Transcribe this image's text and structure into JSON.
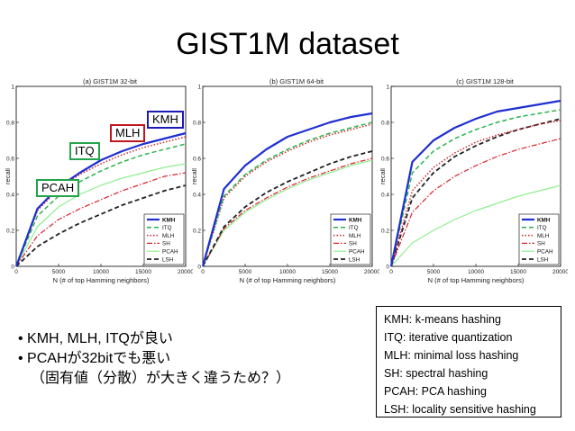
{
  "title": "GIST1M dataset",
  "callouts": {
    "kmh": "KMH",
    "mlh": "MLH",
    "itq": "ITQ",
    "pcah": "PCAH"
  },
  "callout_colors": {
    "kmh": "#1a1ab5",
    "mlh": "#c0171e",
    "itq": "#23a34a",
    "pcah": "#23a34a"
  },
  "bullets": [
    "• KMH, MLH, ITQが良い",
    "• PCAHが32bitでも悪い",
    "（固有値（分散）が大きく違うため？）"
  ],
  "legend_box": [
    "KMH: k-means hashing",
    "ITQ: iterative quantization",
    "MLH: minimal loss hashing",
    "SH: spectral hashing",
    "PCAH: PCA hashing",
    "LSH: locality sensitive hashing"
  ],
  "chart_data": [
    {
      "type": "line",
      "title": "(a) GIST1M 32-bit",
      "xlabel": "N (# of top Hamming neighbors)",
      "ylabel": "recall",
      "x": [
        0,
        2500,
        5000,
        7500,
        10000,
        12500,
        15000,
        17500,
        20000
      ],
      "xticks": [
        0,
        5000,
        10000,
        15000,
        20000
      ],
      "yticks": [
        0,
        0.2,
        0.4,
        0.6,
        0.8,
        1
      ],
      "xlim": [
        0,
        20000
      ],
      "ylim": [
        0,
        1
      ],
      "legend_position": "bottom-right",
      "series": [
        {
          "name": "KMH",
          "values": [
            0,
            0.32,
            0.44,
            0.52,
            0.59,
            0.64,
            0.68,
            0.71,
            0.74
          ]
        },
        {
          "name": "ITQ",
          "values": [
            0,
            0.28,
            0.39,
            0.47,
            0.53,
            0.58,
            0.62,
            0.65,
            0.68
          ]
        },
        {
          "name": "MLH",
          "values": [
            0,
            0.31,
            0.43,
            0.51,
            0.57,
            0.62,
            0.66,
            0.69,
            0.72
          ]
        },
        {
          "name": "SH",
          "values": [
            0,
            0.17,
            0.26,
            0.32,
            0.37,
            0.42,
            0.46,
            0.5,
            0.52
          ]
        },
        {
          "name": "PCAH",
          "values": [
            0,
            0.22,
            0.33,
            0.4,
            0.45,
            0.49,
            0.52,
            0.55,
            0.57
          ]
        },
        {
          "name": "LSH",
          "values": [
            0,
            0.11,
            0.18,
            0.24,
            0.29,
            0.34,
            0.38,
            0.42,
            0.45
          ]
        }
      ]
    },
    {
      "type": "line",
      "title": "(b) GIST1M 64-bit",
      "xlabel": "N (# of top Hamming neighbors)",
      "ylabel": "recall",
      "x": [
        0,
        2500,
        5000,
        7500,
        10000,
        12500,
        15000,
        17500,
        20000
      ],
      "xticks": [
        0,
        5000,
        10000,
        15000,
        20000
      ],
      "yticks": [
        0,
        0.2,
        0.4,
        0.6,
        0.8,
        1
      ],
      "xlim": [
        0,
        20000
      ],
      "ylim": [
        0,
        1
      ],
      "legend_position": "bottom-right",
      "series": [
        {
          "name": "KMH",
          "values": [
            0,
            0.43,
            0.56,
            0.65,
            0.72,
            0.76,
            0.8,
            0.83,
            0.85
          ]
        },
        {
          "name": "ITQ",
          "values": [
            0,
            0.39,
            0.51,
            0.59,
            0.65,
            0.7,
            0.74,
            0.77,
            0.8
          ]
        },
        {
          "name": "MLH",
          "values": [
            0,
            0.38,
            0.5,
            0.58,
            0.64,
            0.69,
            0.73,
            0.76,
            0.79
          ]
        },
        {
          "name": "SH",
          "values": [
            0,
            0.21,
            0.31,
            0.38,
            0.44,
            0.49,
            0.53,
            0.57,
            0.6
          ]
        },
        {
          "name": "PCAH",
          "values": [
            0,
            0.2,
            0.3,
            0.37,
            0.43,
            0.48,
            0.52,
            0.56,
            0.59
          ]
        },
        {
          "name": "LSH",
          "values": [
            0,
            0.22,
            0.33,
            0.41,
            0.47,
            0.52,
            0.57,
            0.61,
            0.64
          ]
        }
      ]
    },
    {
      "type": "line",
      "title": "(c) GIST1M 128-bit",
      "xlabel": "N (# of top Hamming neighbors)",
      "ylabel": "recall",
      "x": [
        0,
        2500,
        5000,
        7500,
        10000,
        12500,
        15000,
        17500,
        20000
      ],
      "xticks": [
        0,
        5000,
        10000,
        15000,
        20000
      ],
      "yticks": [
        0,
        0.2,
        0.4,
        0.6,
        0.8,
        1
      ],
      "xlim": [
        0,
        20000
      ],
      "ylim": [
        0,
        1
      ],
      "legend_position": "bottom-right",
      "series": [
        {
          "name": "KMH",
          "values": [
            0,
            0.58,
            0.7,
            0.77,
            0.82,
            0.86,
            0.88,
            0.9,
            0.92
          ]
        },
        {
          "name": "ITQ",
          "values": [
            0,
            0.52,
            0.64,
            0.71,
            0.76,
            0.8,
            0.83,
            0.85,
            0.87
          ]
        },
        {
          "name": "MLH",
          "values": [
            0,
            0.42,
            0.55,
            0.63,
            0.69,
            0.73,
            0.76,
            0.79,
            0.81
          ]
        },
        {
          "name": "SH",
          "values": [
            0,
            0.3,
            0.42,
            0.5,
            0.56,
            0.61,
            0.65,
            0.68,
            0.71
          ]
        },
        {
          "name": "PCAH",
          "values": [
            0,
            0.13,
            0.2,
            0.26,
            0.31,
            0.35,
            0.39,
            0.42,
            0.45
          ]
        },
        {
          "name": "LSH",
          "values": [
            0,
            0.38,
            0.52,
            0.61,
            0.67,
            0.72,
            0.76,
            0.79,
            0.82
          ]
        }
      ]
    }
  ],
  "series_styles": {
    "KMH": {
      "color": "#1f2fd0",
      "dash": "",
      "width": 2.2
    },
    "ITQ": {
      "color": "#29b34a",
      "dash": "5,3",
      "width": 1.5
    },
    "MLH": {
      "color": "#c9262c",
      "dash": "1.5,2",
      "width": 1.5
    },
    "SH": {
      "color": "#d8232a",
      "dash": "6,2,1.5,2",
      "width": 1.2
    },
    "PCAH": {
      "color": "#90ee90",
      "dash": "",
      "width": 1.2
    },
    "LSH": {
      "color": "#222222",
      "dash": "5,3",
      "width": 1.8
    }
  }
}
